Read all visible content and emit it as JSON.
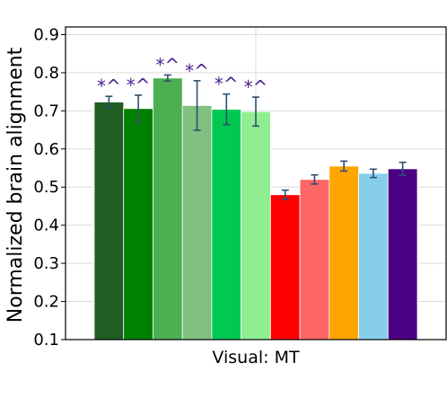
{
  "chart_data": {
    "type": "bar",
    "xlabel": "Visual: MT",
    "ylabel": "Normalized brain alignment",
    "ylim": [
      0.1,
      0.92
    ],
    "yticks": [
      "0.1",
      "0.2",
      "0.3",
      "0.4",
      "0.5",
      "0.6",
      "0.7",
      "0.8",
      "0.9"
    ],
    "grid": true,
    "significance_color": "#4b1f8f",
    "bars": [
      {
        "value": 0.723,
        "error": 0.015,
        "color": "#1e5e23",
        "annotation": "*^"
      },
      {
        "value": 0.706,
        "error": 0.035,
        "color": "#008000",
        "annotation": "*^"
      },
      {
        "value": 0.786,
        "error": 0.008,
        "color": "#4caf50",
        "annotation": "*^"
      },
      {
        "value": 0.714,
        "error": 0.065,
        "color": "#80c080",
        "annotation": "*^"
      },
      {
        "value": 0.704,
        "error": 0.04,
        "color": "#00c853",
        "annotation": "*^"
      },
      {
        "value": 0.698,
        "error": 0.038,
        "color": "#90ee90",
        "annotation": "*^"
      },
      {
        "value": 0.48,
        "error": 0.012,
        "color": "#ff0000",
        "annotation": ""
      },
      {
        "value": 0.52,
        "error": 0.012,
        "color": "#ff6666",
        "annotation": ""
      },
      {
        "value": 0.555,
        "error": 0.013,
        "color": "#ffa500",
        "annotation": ""
      },
      {
        "value": 0.536,
        "error": 0.011,
        "color": "#87ceeb",
        "annotation": ""
      },
      {
        "value": 0.548,
        "error": 0.017,
        "color": "#4b0082",
        "annotation": ""
      }
    ]
  }
}
